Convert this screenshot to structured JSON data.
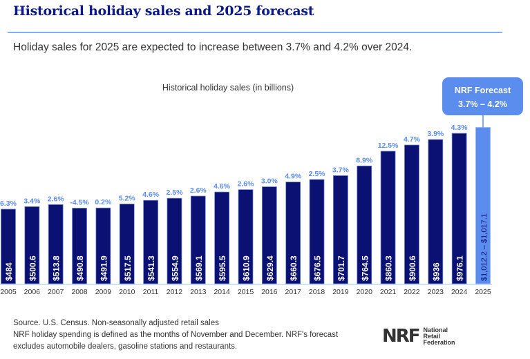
{
  "title": "Historical holiday sales and 2025 forecast",
  "subtitle": "Holiday sales for 2025 are expected to increase between 3.7% and 4.2% over 2024.",
  "chart_data": {
    "type": "bar",
    "title": "Historical holiday sales (in billions)",
    "categories": [
      "2005",
      "2006",
      "2007",
      "2008",
      "2009",
      "2010",
      "2011",
      "2012",
      "2013",
      "2014",
      "2015",
      "2016",
      "2017",
      "2018",
      "2019",
      "2020",
      "2021",
      "2022",
      "2023",
      "2024",
      "2025"
    ],
    "values": [
      484,
      500.6,
      513.8,
      490.8,
      491.9,
      517.5,
      541.3,
      554.9,
      569.1,
      595.5,
      610.9,
      629.4,
      660.3,
      676.5,
      701.7,
      764.5,
      860.3,
      900.6,
      936,
      976.1,
      null
    ],
    "value_labels": [
      "$484",
      "$500.6",
      "$513.8",
      "$490.8",
      "$491.9",
      "$517.5",
      "$541.3",
      "$554.9",
      "$569.1",
      "$595.5",
      "$610.9",
      "$629.4",
      "$660.3",
      "$676.5",
      "$701.7",
      "$764.5",
      "$860.3",
      "$900.6",
      "$936",
      "$976.1",
      "$1,012.2 – $1,017.1"
    ],
    "growth_labels": [
      "6.3%",
      "3.4%",
      "2.6%",
      "-4.5%",
      "0.2%",
      "5.2%",
      "4.6%",
      "2.5%",
      "2.6%",
      "4.6%",
      "2.6%",
      "3.0%",
      "4.9%",
      "2.5%",
      "3.7%",
      "8.9%",
      "12.5%",
      "4.7%",
      "3.9%",
      "4.3%",
      ""
    ],
    "forecast": {
      "range": [
        1012.2,
        1017.1
      ],
      "label_line1": "NRF Forecast",
      "label_line2": "3.7% – 4.2%"
    },
    "ylim": [
      0,
      1100
    ],
    "colors": {
      "historical": "#0a1172",
      "forecast": "#5b8def",
      "growth_label": "#5b8def",
      "baseline": "#cfe0f7"
    }
  },
  "footer": {
    "line1": "Source. U.S. Census. Non-seasonally adjusted retail sales",
    "line2": "NRF holiday spending is defined as the months of November and December. NRF's forecast",
    "line3": "excludes automobile dealers, gasoline stations and restaurants."
  },
  "logo": {
    "mark": "NRF",
    "line1": "National",
    "line2": "Retail",
    "line3": "Federation"
  }
}
